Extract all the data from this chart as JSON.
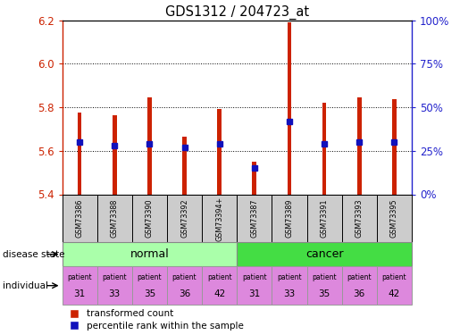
{
  "title": "GDS1312 / 204723_at",
  "samples": [
    "GSM73386",
    "GSM73388",
    "GSM73390",
    "GSM73392",
    "GSM73394+",
    "GSM73387",
    "GSM73389",
    "GSM73391",
    "GSM73393",
    "GSM73395"
  ],
  "transformed_count": [
    5.775,
    5.765,
    5.845,
    5.665,
    5.79,
    5.55,
    6.19,
    5.82,
    5.845,
    5.835
  ],
  "percentile_rank_pct": [
    30,
    28,
    29,
    27,
    29,
    15,
    42,
    29,
    30,
    30
  ],
  "ylim_left": [
    5.4,
    6.2
  ],
  "yticks_left": [
    5.4,
    5.6,
    5.8,
    6.0,
    6.2
  ],
  "yticks_right_vals": [
    0,
    25,
    50,
    75,
    100
  ],
  "bar_color": "#cc2200",
  "blue_color": "#1111bb",
  "disease_states": [
    "normal",
    "normal",
    "normal",
    "normal",
    "normal",
    "cancer",
    "cancer",
    "cancer",
    "cancer",
    "cancer"
  ],
  "disease_state_label": "disease state",
  "individual_label": "individual",
  "patients": [
    31,
    33,
    35,
    36,
    42,
    31,
    33,
    35,
    36,
    42
  ],
  "normal_color": "#aaffaa",
  "cancer_color": "#44dd44",
  "patient_color": "#dd88dd",
  "legend_red": "transformed count",
  "legend_blue": "percentile rank within the sample",
  "label_color_left": "#cc2200",
  "label_color_right": "#2222cc",
  "bar_width": 0.12
}
